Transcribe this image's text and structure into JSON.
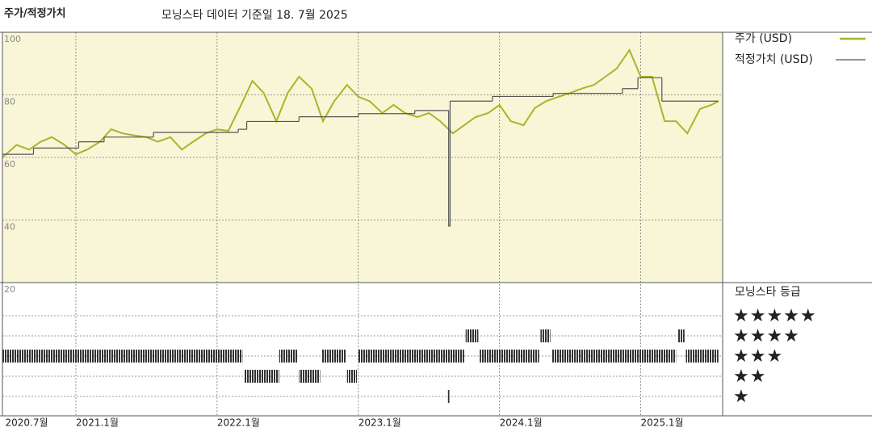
{
  "chart_data": [
    {
      "type": "line",
      "title": "주가/적정가치",
      "subtitle": "모닝스타 데이터 기준일 18. 7월 2025",
      "xlim": [
        2020.48,
        2025.58
      ],
      "xticks": [
        {
          "value": 2020.5,
          "label": "2020.7월"
        },
        {
          "value": 2021.0,
          "label": "2021.1월"
        },
        {
          "value": 2022.0,
          "label": "2022.1월"
        },
        {
          "value": 2023.0,
          "label": "2023.1월"
        },
        {
          "value": 2024.0,
          "label": "2024.1월"
        },
        {
          "value": 2025.0,
          "label": "2025.1월"
        }
      ],
      "ylim": [
        20,
        100
      ],
      "yticks": [
        100,
        80,
        60,
        40,
        20
      ],
      "grid": true,
      "background": "#f8f6d6",
      "series": [
        {
          "name": "주가 (USD)",
          "color": "#a9b42a",
          "x": [
            2020.48,
            2020.58,
            2020.67,
            2020.75,
            2020.83,
            2020.92,
            2021.0,
            2021.08,
            2021.17,
            2021.25,
            2021.33,
            2021.42,
            2021.5,
            2021.58,
            2021.67,
            2021.75,
            2021.83,
            2021.92,
            2022.0,
            2022.08,
            2022.17,
            2022.25,
            2022.33,
            2022.42,
            2022.5,
            2022.58,
            2022.67,
            2022.75,
            2022.83,
            2022.92,
            2023.0,
            2023.08,
            2023.17,
            2023.25,
            2023.33,
            2023.42,
            2023.5,
            2023.58,
            2023.67,
            2023.75,
            2023.83,
            2023.92,
            2024.0,
            2024.08,
            2024.17,
            2024.25,
            2024.33,
            2024.42,
            2024.5,
            2024.58,
            2024.67,
            2024.75,
            2024.83,
            2024.92,
            2025.0,
            2025.08,
            2025.17,
            2025.25,
            2025.33,
            2025.42,
            2025.5,
            2025.55
          ],
          "values": [
            60,
            64,
            62.5,
            65,
            66.5,
            64,
            61,
            62.5,
            65,
            69,
            67.7,
            67,
            66.5,
            65,
            66.5,
            62.5,
            65,
            67.7,
            69,
            68.5,
            76.8,
            84.5,
            80.6,
            71.6,
            80.6,
            85.8,
            82,
            71.6,
            78,
            83.2,
            79.4,
            78,
            74.2,
            76.8,
            74.2,
            72.9,
            74.2,
            71.6,
            67.7,
            70.3,
            72.9,
            74.2,
            76.8,
            71.6,
            70.3,
            75.8,
            78,
            79.4,
            80.6,
            82,
            83.2,
            85.8,
            88.4,
            94.3,
            85.8,
            85.8,
            71.6,
            71.6,
            67.7,
            75.5,
            76.8,
            78
          ]
        },
        {
          "name": "적정가치 (USD)",
          "color": "#555555",
          "step": true,
          "x": [
            2020.48,
            2020.7,
            2021.02,
            2021.2,
            2021.55,
            2022.15,
            2022.21,
            2022.58,
            2023.0,
            2023.4,
            2023.64,
            2023.65,
            2023.95,
            2024.38,
            2024.87,
            2024.98,
            2025.15,
            2025.55
          ],
          "values": [
            61,
            63,
            65,
            66.5,
            68,
            69,
            71.5,
            73,
            74,
            75,
            38,
            78,
            79.5,
            80.5,
            82,
            85.5,
            78,
            78
          ]
        }
      ]
    },
    {
      "type": "rating",
      "title": "모닝스타 등급",
      "xlim": [
        2020.48,
        2025.58
      ],
      "color": "#333333",
      "yticks": [
        {
          "value": 5,
          "label": "★★★★★"
        },
        {
          "value": 4,
          "label": "★★★★"
        },
        {
          "value": 3,
          "label": "★★★"
        },
        {
          "value": 2,
          "label": "★★"
        },
        {
          "value": 1,
          "label": "★"
        }
      ],
      "segments": [
        {
          "start": 2020.48,
          "end": 2022.18,
          "stars": 3
        },
        {
          "start": 2022.19,
          "end": 2022.44,
          "stars": 2
        },
        {
          "start": 2022.44,
          "end": 2022.57,
          "stars": 3
        },
        {
          "start": 2022.58,
          "end": 2022.73,
          "stars": 2
        },
        {
          "start": 2022.74,
          "end": 2022.91,
          "stars": 3
        },
        {
          "start": 2022.92,
          "end": 2022.99,
          "stars": 2
        },
        {
          "start": 2023.0,
          "end": 2023.75,
          "stars": 3
        },
        {
          "start": 2023.635,
          "end": 2023.645,
          "stars": 1
        },
        {
          "start": 2023.76,
          "end": 2023.85,
          "stars": 4
        },
        {
          "start": 2023.86,
          "end": 2024.28,
          "stars": 3
        },
        {
          "start": 2024.29,
          "end": 2024.36,
          "stars": 4
        },
        {
          "start": 2024.37,
          "end": 2025.25,
          "stars": 3
        },
        {
          "start": 2025.26,
          "end": 2025.31,
          "stars": 4
        },
        {
          "start": 2025.32,
          "end": 2025.55,
          "stars": 3
        }
      ]
    }
  ]
}
